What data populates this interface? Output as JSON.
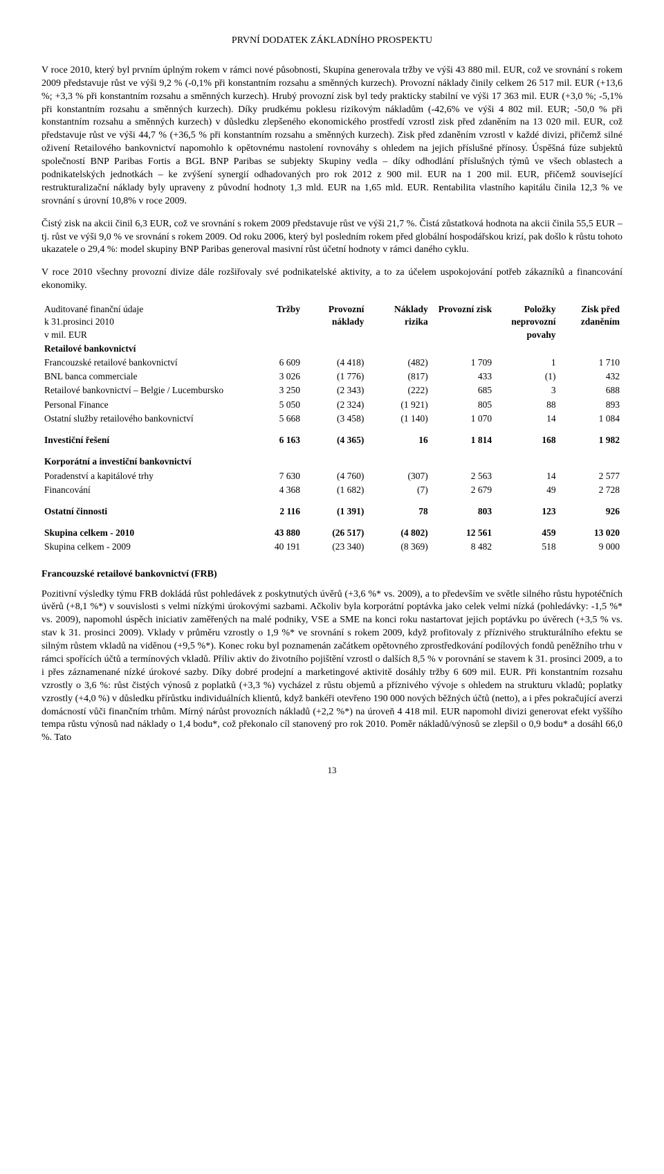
{
  "header": "PRVNÍ DODATEK ZÁKLADNÍHO PROSPEKTU",
  "para1": "V roce 2010, který byl prvním úplným rokem v rámci nové působnosti, Skupina generovala tržby ve výši 43 880 mil. EUR, což ve srovnání s rokem 2009 představuje růst ve výši 9,2 % (-0,1% při konstantním rozsahu a směnných kurzech). Provozní náklady činily celkem 26 517 mil. EUR (+13,6 %; +3,3 % při konstantním rozsahu a směnných kurzech). Hrubý provozní zisk byl tedy prakticky stabilní ve výši 17 363 mil. EUR (+3,0 %; -5,1% při konstantním rozsahu a směnných kurzech). Díky prudkému poklesu rizikovým nákladům (-42,6% ve výši 4 802 mil. EUR; -50,0 % při konstantním rozsahu a směnných kurzech) v důsledku zlepšeného ekonomického prostředí vzrostl zisk před zdaněním na 13 020 mil. EUR, což představuje růst ve výši 44,7 % (+36,5 % při konstantním rozsahu a směnných kurzech). Zisk před zdaněním vzrostl v každé divizi, přičemž silné oživení Retailového bankovnictví napomohlo k opětovnému nastolení rovnováhy s ohledem na jejich příslušné přínosy. Úspěšná fúze subjektů společností BNP Paribas Fortis a BGL BNP Paribas se subjekty Skupiny vedla – díky odhodlání příslušných týmů ve všech oblastech a podnikatelských jednotkách – ke zvýšení synergií odhadovaných pro rok 2012 z 900 mil. EUR na 1 200 mil. EUR, přičemž související restrukturalizační náklady byly upraveny z původní hodnoty 1,3 mld. EUR na 1,65 mld. EUR. Rentabilita vlastního kapitálu činila 12,3 % ve srovnání s úrovní 10,8% v roce 2009.",
  "para2": "Čistý zisk na akcii činil 6,3 EUR, což ve srovnání s rokem 2009 představuje růst ve výši 21,7 %. Čistá zůstatková hodnota na akcii činila 55,5 EUR – tj. růst ve výši 9,0 % ve srovnání s rokem 2009. Od roku 2006, který byl posledním rokem před globální hospodářskou krizí, pak došlo k růstu tohoto ukazatele o 29,4 %: model skupiny BNP Paribas generoval masivní růst účetní hodnoty v rámci daného cyklu.",
  "para3": "V roce 2010 všechny provozní divize dále rozšiřovaly své podnikatelské aktivity, a to za účelem uspokojování potřeb zákazníků a financování ekonomiky.",
  "table": {
    "head_label": [
      "Auditované finanční údaje",
      "k 31.prosinci 2010",
      "v mil. EUR"
    ],
    "columns": [
      "Tržby",
      "Provozní náklady",
      "Náklady rizika",
      "Provozní zisk",
      "Položky neprovozní povahy",
      "Zisk před zdaněním"
    ],
    "sec1": "Retailové bankovnictví",
    "rows1": [
      {
        "label": "Francouzské retailové bankovnictví",
        "v": [
          "6 609",
          "(4 418)",
          "(482)",
          "1 709",
          "1",
          "1 710"
        ]
      },
      {
        "label": "BNL banca commerciale",
        "v": [
          "3 026",
          "(1 776)",
          "(817)",
          "433",
          "(1)",
          "432"
        ]
      },
      {
        "label": "Retailové bankovnictví – Belgie / Lucembursko",
        "v": [
          "3 250",
          "(2 343)",
          "(222)",
          "685",
          "3",
          "688"
        ]
      },
      {
        "label": "Personal Finance",
        "v": [
          "5 050",
          "(2 324)",
          "(1 921)",
          "805",
          "88",
          "893"
        ]
      },
      {
        "label": "Ostatní služby retailového bankovnictví",
        "v": [
          "5 668",
          "(3 458)",
          "(1 140)",
          "1 070",
          "14",
          "1 084"
        ]
      }
    ],
    "row_invest": {
      "label": "Investiční řešení",
      "v": [
        "6 163",
        "(4 365)",
        "16",
        "1 814",
        "168",
        "1 982"
      ]
    },
    "sec3": "Korporátní a investiční bankovnictví",
    "rows3": [
      {
        "label": "Poradenství a kapitálové trhy",
        "v": [
          "7 630",
          "(4 760)",
          "(307)",
          "2 563",
          "14",
          "2 577"
        ]
      },
      {
        "label": "Financování",
        "v": [
          "4 368",
          "(1 682)",
          "(7)",
          "2 679",
          "49",
          "2 728"
        ]
      }
    ],
    "row_other": {
      "label": "Ostatní činnosti",
      "v": [
        "2 116",
        "(1 391)",
        "78",
        "803",
        "123",
        "926"
      ]
    },
    "row_total2010": {
      "label": "Skupina celkem - 2010",
      "v": [
        "43 880",
        "(26 517)",
        "(4 802)",
        "12 561",
        "459",
        "13 020"
      ]
    },
    "row_total2009": {
      "label": "Skupina celkem - 2009",
      "v": [
        "40 191",
        "(23 340)",
        "(8 369)",
        "8 482",
        "518",
        "9 000"
      ]
    }
  },
  "sub_frb": "Francouzské retailové bankovnictví (FRB)",
  "para_frb": "Pozitivní výsledky týmu FRB dokládá růst pohledávek z poskytnutých úvěrů (+3,6 %* vs. 2009), a to především ve světle silného růstu hypotéčních úvěrů (+8,1 %*) v souvislosti s velmi nízkými úrokovými sazbami. Ačkoliv byla korporátní poptávka jako celek velmi nízká (pohledávky: -1,5 %* vs. 2009), napomohl úspěch iniciativ zaměřených na malé podniky, VSE a SME na konci roku nastartovat jejich poptávku po úvěrech (+3,5 % vs. stav k 31. prosinci 2009). Vklady v průměru vzrostly o 1,9 %* ve srovnání s rokem 2009, když profitovaly z příznivého strukturálního efektu se silným růstem vkladů na viděnou (+9,5 %*). Konec roku byl poznamenán začátkem opětovného zprostředkování podílových fondů peněžního trhu v rámci spořících účtů a termínových vkladů. Příliv aktiv do životního pojištění vzrostl o dalších 8,5 % v porovnání se stavem k 31. prosinci 2009, a to i přes záznamenané nízké úrokové sazby. Díky dobré prodejní a marketingové aktivitě dosáhly tržby 6 609 mil. EUR. Při konstantním rozsahu vzrostly o 3,6 %: růst čistých výnosů z poplatků (+3,3 %) vycházel z růstu objemů a příznivého vývoje s ohledem na strukturu vkladů; poplatky vzrostly (+4,0 %) v důsledku přírůstku individuálních klientů, když bankéři otevřeno 190 000 nových běžných účtů (netto), a i přes pokračující averzi domácností vůči finančním trhům. Mírný nárůst provozních nákladů (+2,2 %*) na úroveň 4 418 mil. EUR napomohl divizi generovat efekt vyššího tempa růstu výnosů nad náklady o 1,4 bodu*, což překonalo cíl stanovený pro rok 2010. Poměr nákladů/výnosů se zlepšil o 0,9 bodu* a dosáhl 66,0 %. Tato",
  "pagenum": "13"
}
